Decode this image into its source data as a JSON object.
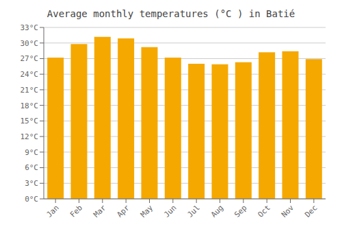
{
  "chart_data": {
    "type": "bar",
    "title": "Average monthly temperatures (°C ) in Batié",
    "categories": [
      "Jan",
      "Feb",
      "Mar",
      "Apr",
      "May",
      "Jun",
      "Jul",
      "Aug",
      "Sep",
      "Oct",
      "Nov",
      "Dec"
    ],
    "values": [
      27.2,
      29.8,
      31.2,
      30.9,
      29.2,
      27.2,
      26.0,
      25.9,
      26.3,
      28.2,
      28.4,
      26.9
    ],
    "color": "#F5A800",
    "ylim": [
      0,
      33
    ],
    "yticks": [
      {
        "value": 0,
        "label": "0°C"
      },
      {
        "value": 3,
        "label": "3°C"
      },
      {
        "value": 6,
        "label": "6°C"
      },
      {
        "value": 9,
        "label": "9°C"
      },
      {
        "value": 12,
        "label": "12°C"
      },
      {
        "value": 15,
        "label": "15°C"
      },
      {
        "value": 18,
        "label": "18°C"
      },
      {
        "value": 21,
        "label": "21°C"
      },
      {
        "value": 24,
        "label": "24°C"
      },
      {
        "value": 27,
        "label": "27°C"
      },
      {
        "value": 30,
        "label": "30°C"
      },
      {
        "value": 33,
        "label": "33°C"
      }
    ],
    "grid": true
  }
}
